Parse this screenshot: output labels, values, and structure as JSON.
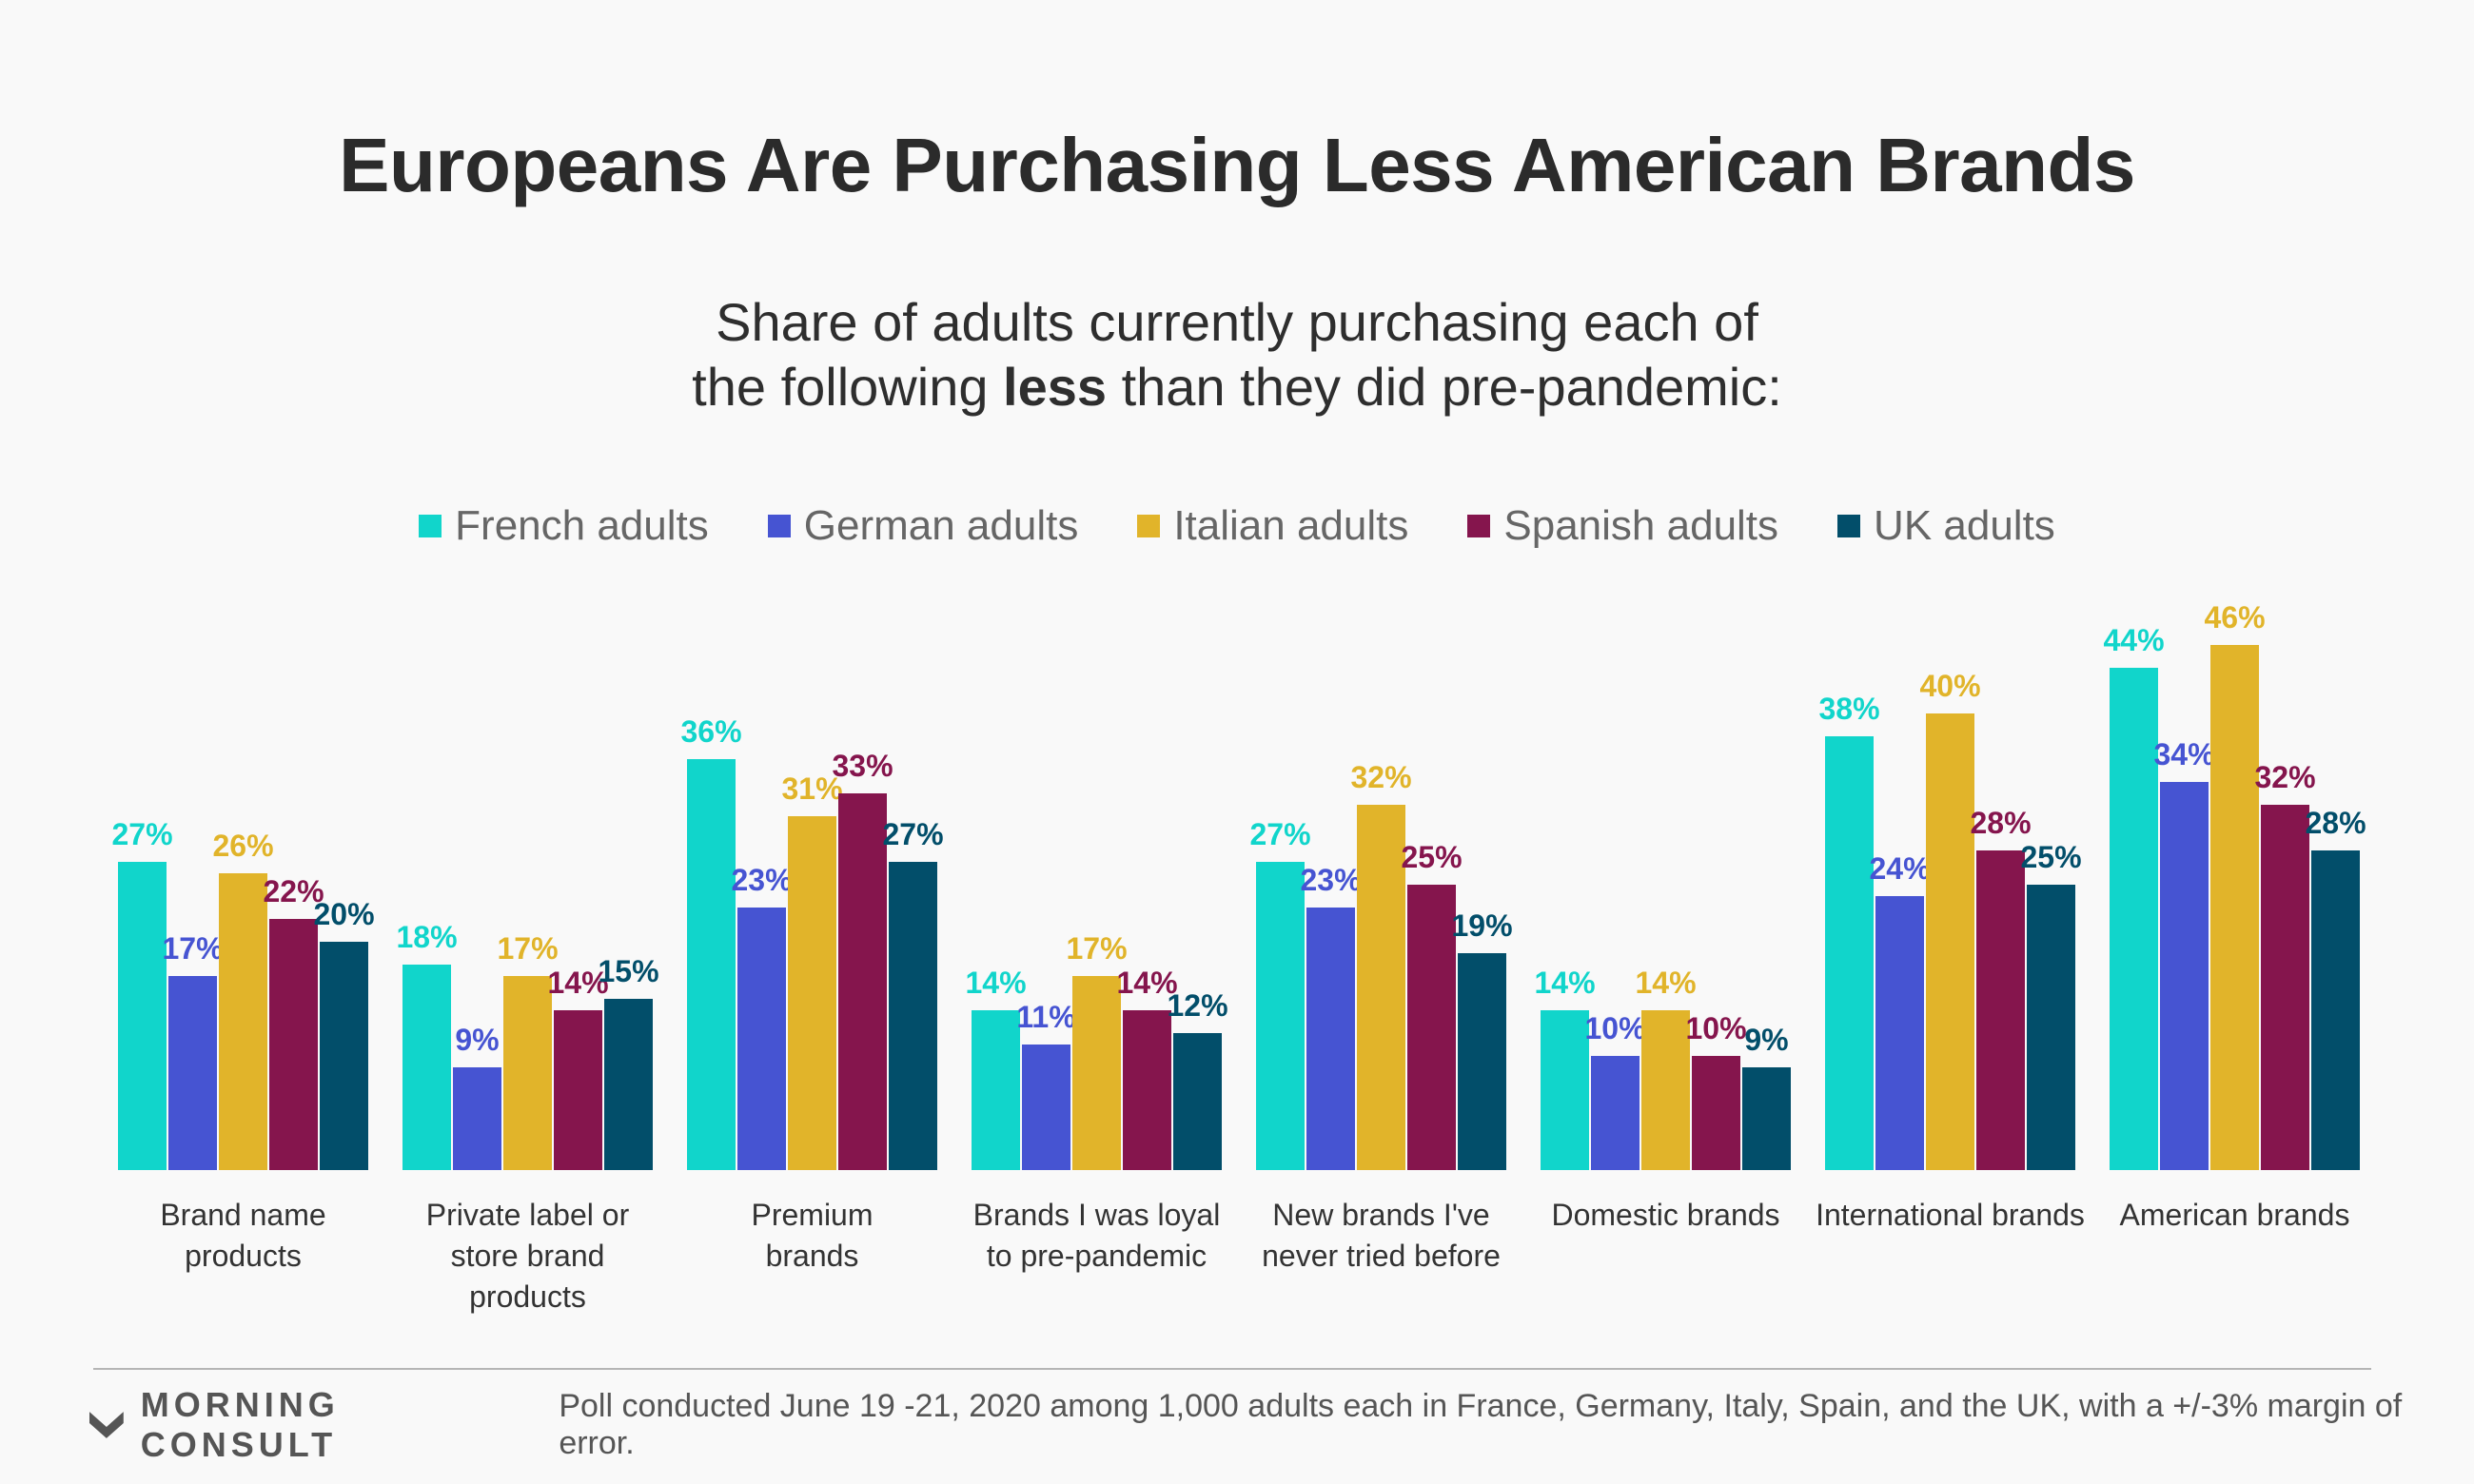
{
  "header": {
    "title": "Europeans Are Purchasing Less American Brands",
    "subtitle_line1": "Share of adults currently purchasing each of",
    "subtitle_line2_before": "the following ",
    "subtitle_line2_bold": "less",
    "subtitle_line2_after": " than they did pre-pandemic:"
  },
  "footer": {
    "brand": "MORNING CONSULT",
    "note": "Poll conducted June 19 -21, 2020 among 1,000 adults each in France, Germany, Italy, Spain, and the UK, with a +/-3% margin of error."
  },
  "chart_data": {
    "type": "bar",
    "title": "Europeans Are Purchasing Less American Brands",
    "subtitle": "Share of adults currently purchasing each of the following less than they did pre-pandemic:",
    "legend_position": "top-center",
    "grid": false,
    "ylim": [
      0,
      50
    ],
    "value_suffix": "%",
    "categories": [
      [
        "Brand name",
        "products"
      ],
      [
        "Private label or",
        "store brand",
        "products"
      ],
      [
        "Premium",
        "brands"
      ],
      [
        "Brands I was loyal",
        "to pre-pandemic"
      ],
      [
        "New brands I've",
        "never tried before"
      ],
      [
        "Domestic brands"
      ],
      [
        "International brands"
      ],
      [
        "American brands"
      ]
    ],
    "series": [
      {
        "name": "French adults",
        "color": "#11d5cb",
        "values": [
          27,
          18,
          36,
          14,
          27,
          14,
          38,
          44
        ]
      },
      {
        "name": "German adults",
        "color": "#4654d2",
        "values": [
          17,
          9,
          23,
          11,
          23,
          10,
          24,
          34
        ]
      },
      {
        "name": "Italian adults",
        "color": "#e1b42a",
        "values": [
          26,
          17,
          31,
          17,
          32,
          14,
          40,
          46
        ]
      },
      {
        "name": "Spanish adults",
        "color": "#85154d",
        "values": [
          22,
          14,
          33,
          14,
          25,
          10,
          28,
          32
        ]
      },
      {
        "name": "UK adults",
        "color": "#024e6a",
        "values": [
          20,
          15,
          27,
          12,
          19,
          9,
          25,
          28
        ]
      }
    ]
  }
}
